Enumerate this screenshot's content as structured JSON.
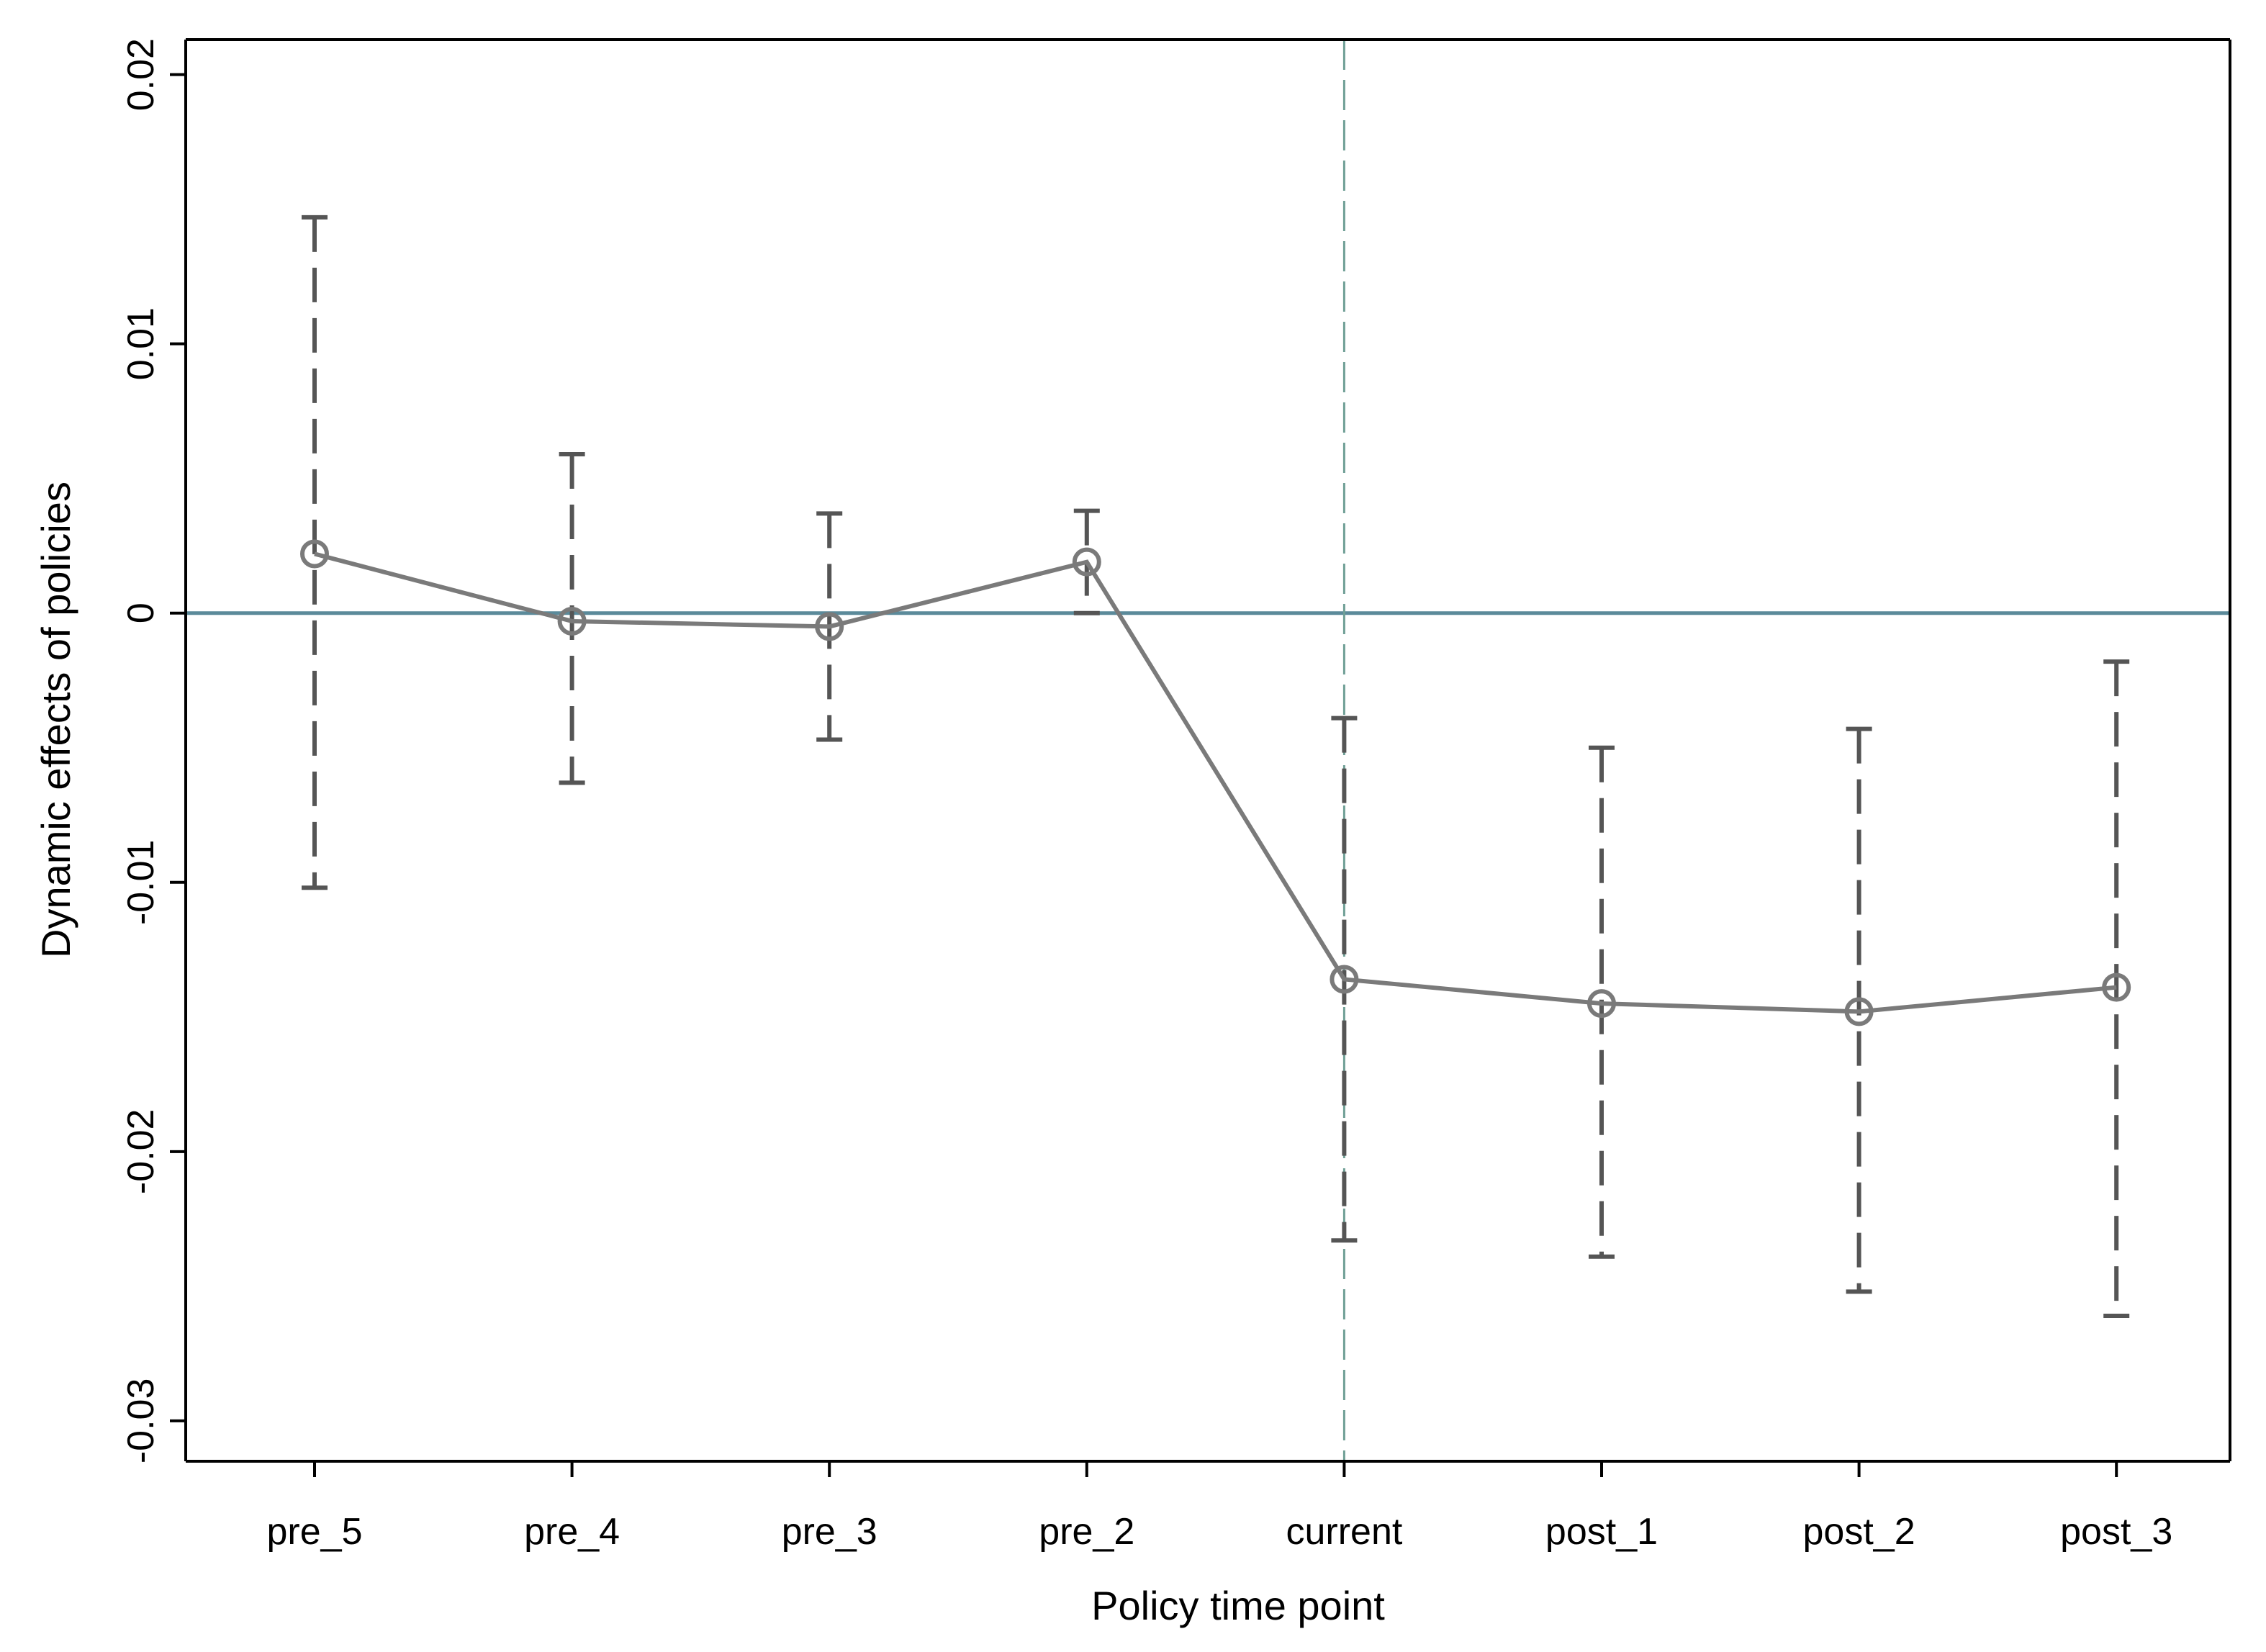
{
  "chart_data": {
    "type": "line",
    "title": "",
    "xlabel": "Policy time point",
    "ylabel": "Dynamic effects of policies",
    "categories": [
      "pre_5",
      "pre_4",
      "pre_3",
      "pre_2",
      "current",
      "post_1",
      "post_2",
      "post_3"
    ],
    "series": [
      {
        "name": "Dynamic effects of policies",
        "values": [
          0.0022,
          -0.0003,
          -0.0005,
          0.0019,
          -0.0136,
          -0.0145,
          -0.0148,
          -0.0139
        ],
        "ci_lower": [
          -0.0102,
          -0.0063,
          -0.0047,
          0.0,
          -0.0233,
          -0.0239,
          -0.0252,
          -0.0261
        ],
        "ci_upper": [
          0.0147,
          0.0059,
          0.0037,
          0.0038,
          -0.0039,
          -0.005,
          -0.0043,
          -0.0018
        ]
      }
    ],
    "ylim": [
      -0.0315,
      0.0213
    ],
    "yticks": [
      -0.03,
      -0.02,
      -0.01,
      0,
      0.01,
      0.02
    ],
    "ytick_labels": [
      "-0.03",
      "-0.02",
      "-0.01",
      "0",
      "0.01",
      "0.02"
    ],
    "reference_hline": 0,
    "reference_vline_category": "current",
    "grid": false,
    "colors": {
      "series_line": "#7a7a7a",
      "error_bars": "#555555",
      "zero_line": "#5b8a9a",
      "vline": "#6f9f96",
      "axes": "#000000"
    }
  }
}
